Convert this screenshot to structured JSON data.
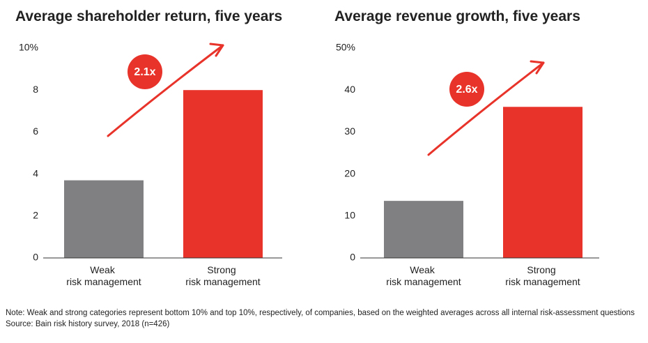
{
  "chart_data": [
    {
      "type": "bar",
      "title": "Average shareholder return, five years",
      "categories": [
        "Weak risk management",
        "Strong risk management"
      ],
      "values": [
        3.7,
        8.0
      ],
      "colors": [
        "#808083",
        "#e8332a"
      ],
      "ylim": [
        0,
        10
      ],
      "yticks": [
        0,
        2,
        4,
        6,
        8,
        {
          "value": 10,
          "label": "10%"
        }
      ],
      "annotation": "2.1x"
    },
    {
      "type": "bar",
      "title": "Average revenue growth, five years",
      "categories": [
        "Weak risk management",
        "Strong risk management"
      ],
      "values": [
        13.6,
        36
      ],
      "colors": [
        "#808083",
        "#e8332a"
      ],
      "ylim": [
        0,
        50
      ],
      "yticks": [
        0,
        10,
        20,
        30,
        40,
        {
          "value": 50,
          "label": "50%"
        }
      ],
      "annotation": "2.6x"
    }
  ],
  "note": "Note: Weak and strong categories represent bottom 10% and top 10%, respectively, of companies, based on the weighted averages across all internal risk-assessment questions",
  "source": "Source: Bain risk history survey, 2018 (n=426)"
}
